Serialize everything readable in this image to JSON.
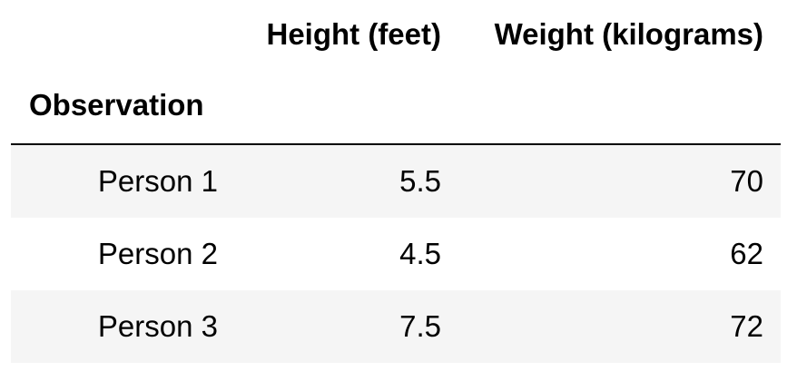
{
  "table": {
    "columns": [
      "Height (feet)",
      "Weight (kilograms)"
    ],
    "index_name": "Observation",
    "rows": [
      {
        "index": "Person 1",
        "height": "5.5",
        "weight": "70"
      },
      {
        "index": "Person 2",
        "height": "4.5",
        "weight": "62"
      },
      {
        "index": "Person 3",
        "height": "7.5",
        "weight": "72"
      }
    ]
  },
  "colors": {
    "striped_row": "#f5f5f5",
    "divider": "#000000"
  }
}
